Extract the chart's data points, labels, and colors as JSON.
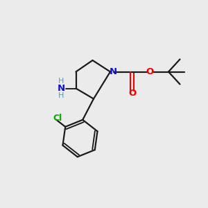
{
  "bg_color": "#ebebeb",
  "bond_color": "#1a1a1a",
  "N_color": "#1111cc",
  "O_color": "#ee0000",
  "Cl_color": "#00aa00",
  "H_color": "#5599aa",
  "line_width": 1.6,
  "figsize": [
    3.0,
    3.0
  ],
  "dpi": 100,
  "xlim": [
    0,
    10
  ],
  "ylim": [
    0,
    10
  ]
}
